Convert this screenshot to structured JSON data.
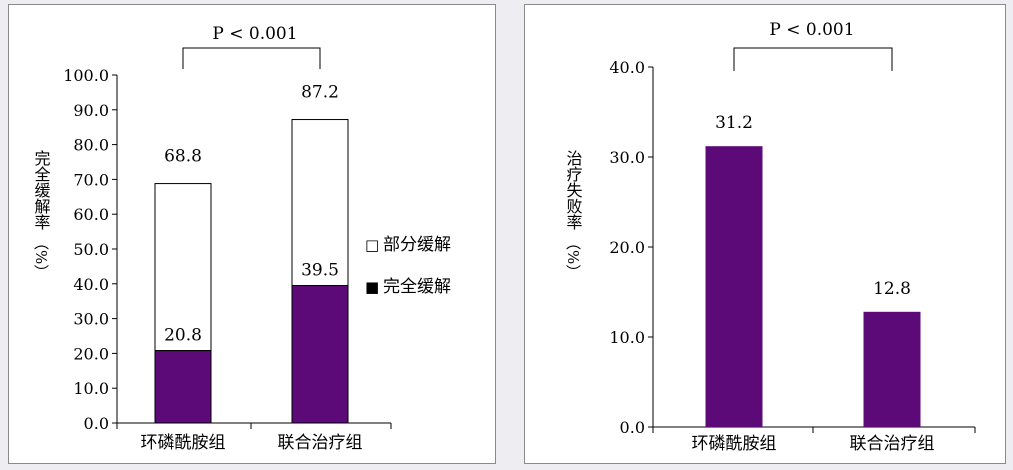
{
  "colors": {
    "complete": "#5c0a78",
    "partial": "#ffffff",
    "axis": "#000000"
  },
  "chart_data": [
    {
      "type": "bar",
      "stacked": true,
      "categories": [
        "环磷酰胺组",
        "联合治疗组"
      ],
      "series": [
        {
          "name": "完全缓解",
          "values": [
            20.8,
            39.5
          ]
        },
        {
          "name": "部分缓解",
          "values": [
            48.0,
            47.7
          ]
        }
      ],
      "totals": [
        68.8,
        87.2
      ],
      "bar_labels": {
        "complete": [
          "20.8",
          "39.5"
        ],
        "total": [
          "68.8",
          "87.2"
        ]
      },
      "ylabel_main": "完全缓解率",
      "ylabel_unit": "（%）",
      "ylim": [
        0,
        100
      ],
      "yticks": [
        "0.0",
        "10.0",
        "20.0",
        "30.0",
        "40.0",
        "50.0",
        "60.0",
        "70.0",
        "80.0",
        "90.0",
        "100.0"
      ],
      "legend": [
        "部分缓解",
        "完全缓解"
      ],
      "legend_markers": [
        "□",
        "■"
      ],
      "annotation": "P < 0.001"
    },
    {
      "type": "bar",
      "categories": [
        "环磷酰胺组",
        "联合治疗组"
      ],
      "values": [
        31.2,
        12.8
      ],
      "bar_labels": [
        "31.2",
        "12.8"
      ],
      "ylabel_main": "治疗失败率",
      "ylabel_unit": "（%）",
      "ylim": [
        0,
        40
      ],
      "yticks": [
        "0.0",
        "10.0",
        "20.0",
        "30.0",
        "40.0"
      ],
      "annotation": "P < 0.001"
    }
  ]
}
